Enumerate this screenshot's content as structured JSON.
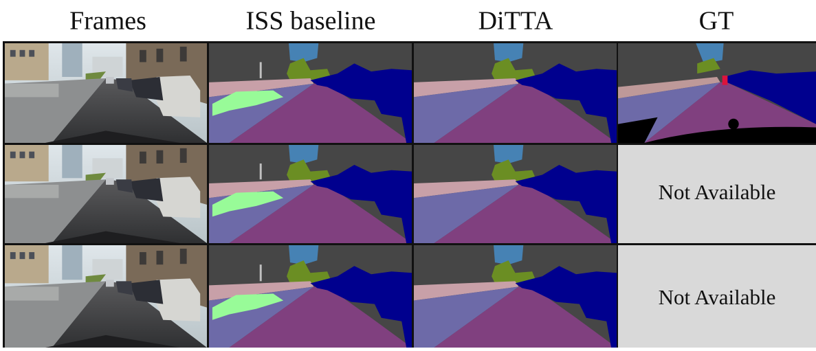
{
  "header": {
    "columns": [
      "Frames",
      "ISS baseline",
      "DiTTA",
      "GT"
    ]
  },
  "placeholders": [
    "Not Available",
    "Not Available"
  ]
}
